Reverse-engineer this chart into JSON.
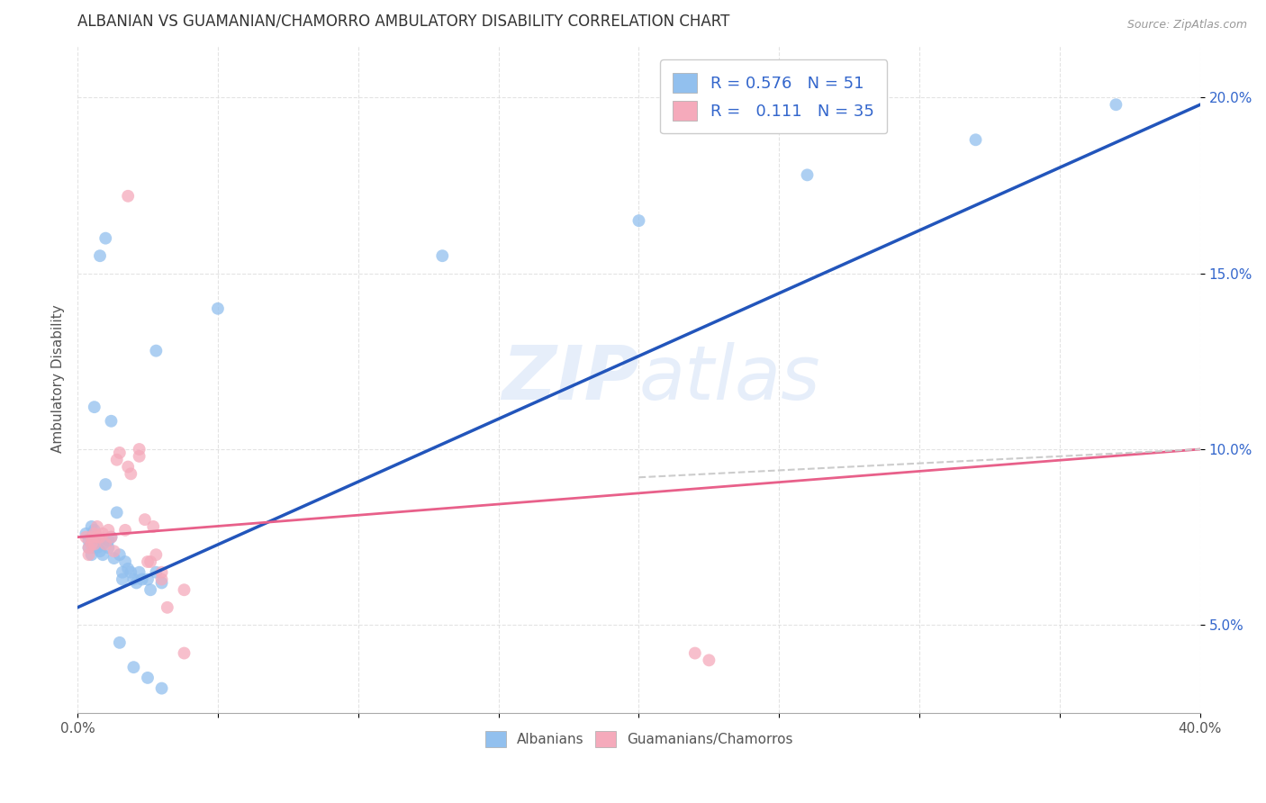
{
  "title": "ALBANIAN VS GUAMANIAN/CHAMORRO AMBULATORY DISABILITY CORRELATION CHART",
  "source": "Source: ZipAtlas.com",
  "ylabel": "Ambulatory Disability",
  "watermark": "ZIPatlas",
  "legend_albanian": "R = 0.576   N = 51",
  "legend_guamanian": "R =   0.111   N = 35",
  "albanian_color": "#92C0EE",
  "guamanian_color": "#F5AABB",
  "albanian_line_color": "#2255BB",
  "guamanian_line_color": "#E8608A",
  "background_color": "#ffffff",
  "grid_color": "#dddddd",
  "albanian_scatter": [
    [
      0.003,
      0.076
    ],
    [
      0.004,
      0.074
    ],
    [
      0.004,
      0.072
    ],
    [
      0.005,
      0.078
    ],
    [
      0.005,
      0.075
    ],
    [
      0.005,
      0.073
    ],
    [
      0.005,
      0.07
    ],
    [
      0.006,
      0.077
    ],
    [
      0.006,
      0.074
    ],
    [
      0.006,
      0.072
    ],
    [
      0.007,
      0.075
    ],
    [
      0.007,
      0.072
    ],
    [
      0.008,
      0.074
    ],
    [
      0.008,
      0.071
    ],
    [
      0.009,
      0.073
    ],
    [
      0.009,
      0.07
    ],
    [
      0.01,
      0.09
    ],
    [
      0.011,
      0.074
    ],
    [
      0.011,
      0.072
    ],
    [
      0.012,
      0.075
    ],
    [
      0.013,
      0.069
    ],
    [
      0.014,
      0.082
    ],
    [
      0.015,
      0.07
    ],
    [
      0.016,
      0.065
    ],
    [
      0.016,
      0.063
    ],
    [
      0.017,
      0.068
    ],
    [
      0.018,
      0.066
    ],
    [
      0.019,
      0.065
    ],
    [
      0.02,
      0.063
    ],
    [
      0.021,
      0.062
    ],
    [
      0.022,
      0.065
    ],
    [
      0.023,
      0.063
    ],
    [
      0.025,
      0.063
    ],
    [
      0.026,
      0.06
    ],
    [
      0.028,
      0.065
    ],
    [
      0.03,
      0.062
    ],
    [
      0.006,
      0.112
    ],
    [
      0.012,
      0.108
    ],
    [
      0.028,
      0.128
    ],
    [
      0.01,
      0.16
    ],
    [
      0.008,
      0.155
    ],
    [
      0.05,
      0.14
    ],
    [
      0.13,
      0.155
    ],
    [
      0.2,
      0.165
    ],
    [
      0.26,
      0.178
    ],
    [
      0.32,
      0.188
    ],
    [
      0.37,
      0.198
    ],
    [
      0.025,
      0.035
    ],
    [
      0.03,
      0.032
    ],
    [
      0.02,
      0.038
    ],
    [
      0.015,
      0.045
    ]
  ],
  "guamanian_scatter": [
    [
      0.003,
      0.075
    ],
    [
      0.004,
      0.072
    ],
    [
      0.004,
      0.07
    ],
    [
      0.005,
      0.075
    ],
    [
      0.005,
      0.073
    ],
    [
      0.006,
      0.076
    ],
    [
      0.006,
      0.073
    ],
    [
      0.007,
      0.075
    ],
    [
      0.007,
      0.078
    ],
    [
      0.008,
      0.075
    ],
    [
      0.009,
      0.076
    ],
    [
      0.01,
      0.073
    ],
    [
      0.011,
      0.077
    ],
    [
      0.012,
      0.075
    ],
    [
      0.013,
      0.071
    ],
    [
      0.014,
      0.097
    ],
    [
      0.015,
      0.099
    ],
    [
      0.017,
      0.077
    ],
    [
      0.018,
      0.095
    ],
    [
      0.019,
      0.093
    ],
    [
      0.022,
      0.1
    ],
    [
      0.022,
      0.098
    ],
    [
      0.024,
      0.08
    ],
    [
      0.025,
      0.068
    ],
    [
      0.026,
      0.068
    ],
    [
      0.027,
      0.078
    ],
    [
      0.028,
      0.07
    ],
    [
      0.03,
      0.065
    ],
    [
      0.03,
      0.063
    ],
    [
      0.032,
      0.055
    ],
    [
      0.038,
      0.06
    ],
    [
      0.018,
      0.172
    ],
    [
      0.22,
      0.042
    ],
    [
      0.225,
      0.04
    ],
    [
      0.038,
      0.042
    ]
  ],
  "xlim": [
    0.0,
    0.4
  ],
  "ylim": [
    0.025,
    0.215
  ],
  "albanian_line": {
    "x0": 0.0,
    "y0": 0.055,
    "x1": 0.4,
    "y1": 0.198
  },
  "guamanian_line": {
    "x0": 0.0,
    "y0": 0.075,
    "x1": 0.4,
    "y1": 0.1
  },
  "guamanian_dashed_line": {
    "x0": 0.2,
    "y0": 0.092,
    "x1": 0.4,
    "y1": 0.1
  }
}
